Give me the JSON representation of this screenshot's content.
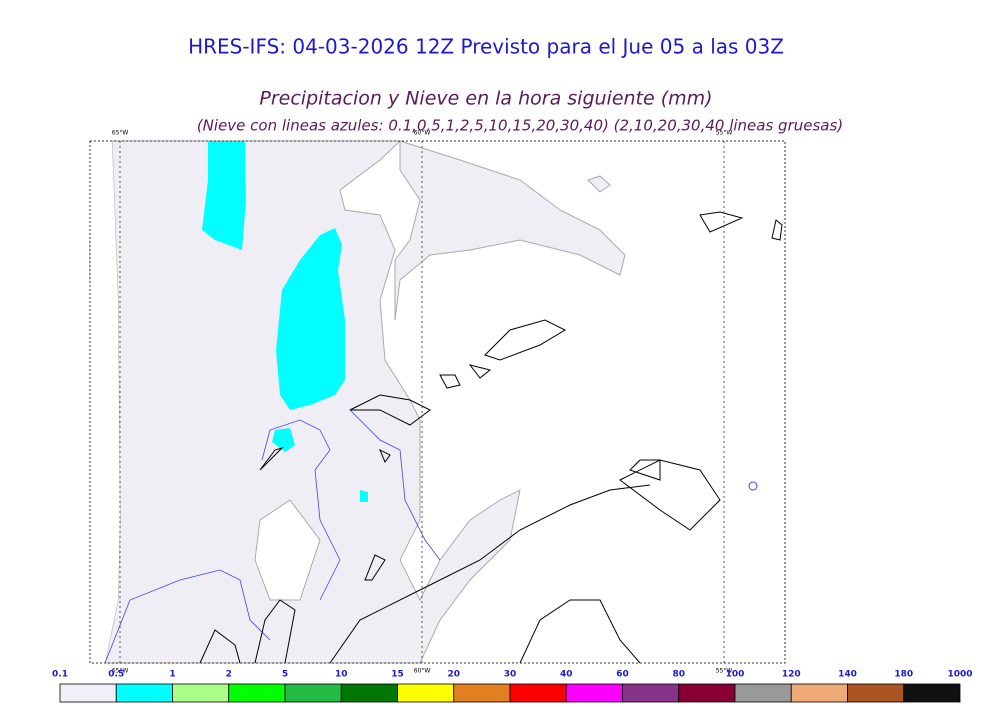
{
  "header": {
    "title": "HRES-IFS: 04-03-2026 12Z Previsto para el Jue 05 a las 03Z",
    "subtitle": "Precipitacion y Nieve en la hora siguiente (mm)",
    "note": "(Nieve con lineas azules: 0.1,0.5,1,2,5,10,15,20,30,40)  (2,10,20,30,40 lineas gruesas)"
  },
  "map": {
    "meridians": [
      "65°W",
      "60°W",
      "55°W"
    ]
  },
  "colorbar": {
    "labels": [
      "0.1",
      "0.5",
      "1",
      "2",
      "5",
      "10",
      "15",
      "20",
      "30",
      "40",
      "60",
      "80",
      "100",
      "120",
      "140",
      "180",
      "1000"
    ],
    "colors": [
      "#f0f0f6",
      "#00ffff",
      "#aaff88",
      "#00ff00",
      "#22bb44",
      "#007700",
      "#ffff00",
      "#e08020",
      "#ff0000",
      "#ff00ff",
      "#883388",
      "#880033",
      "#999999",
      "#eeaa77",
      "#aa5522",
      "#111111"
    ]
  }
}
